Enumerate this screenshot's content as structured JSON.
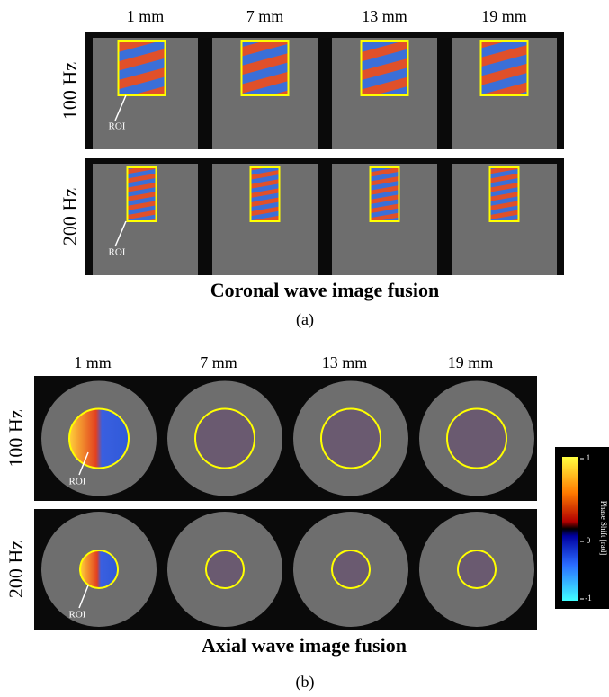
{
  "panel_a": {
    "columns": [
      "1 mm",
      "7 mm",
      "13 mm",
      "19 mm"
    ],
    "rows": [
      "100 Hz",
      "200 Hz"
    ],
    "roi_label": "ROI",
    "title": "Coronal wave image fusion",
    "caption": "(a)"
  },
  "panel_b": {
    "columns": [
      "1 mm",
      "7 mm",
      "13 mm",
      "19 mm"
    ],
    "rows": [
      "100 Hz",
      "200 Hz"
    ],
    "roi_label": "ROI",
    "title": "Axial wave image fusion",
    "caption": "(b)"
  },
  "colorbar": {
    "ticks": [
      "1",
      "0",
      "-1"
    ],
    "label": "Phase Shift [rad]"
  }
}
